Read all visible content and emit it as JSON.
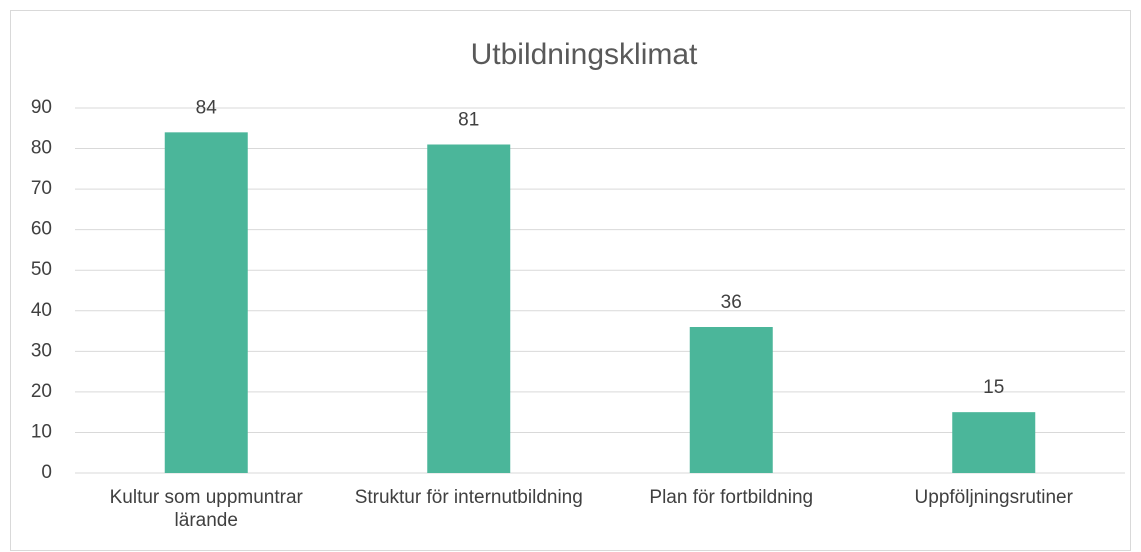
{
  "chart_data": {
    "type": "bar",
    "title": "Utbildningsklimat",
    "categories": [
      "Kultur som uppmuntrar lärande",
      "Struktur för internutbildning",
      "Plan för fortbildning",
      "Uppföljningsrutiner"
    ],
    "values": [
      84,
      81,
      36,
      15
    ],
    "color": "#4bb69a",
    "ylim": [
      0,
      90
    ],
    "yticks": [
      0,
      10,
      20,
      30,
      40,
      50,
      60,
      70,
      80,
      90
    ],
    "grid": true
  }
}
